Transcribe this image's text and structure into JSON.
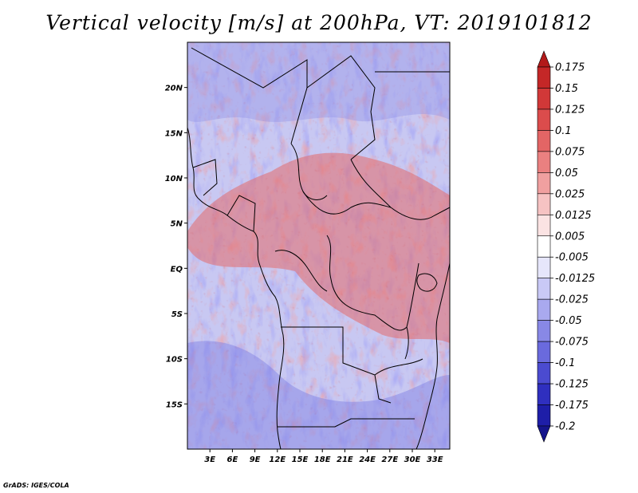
{
  "title": "Vertical velocity [m/s] at 200hPa, VT: 2019101812",
  "credit": "GrADS: IGES/COLA",
  "map": {
    "lon_range": [
      0,
      35
    ],
    "lat_range": [
      -20,
      25
    ],
    "lon_ticks": [
      "3E",
      "6E",
      "9E",
      "12E",
      "15E",
      "18E",
      "21E",
      "24E",
      "27E",
      "30E",
      "33E"
    ],
    "lat_ticks": [
      "20N",
      "15N",
      "10N",
      "5N",
      "EQ",
      "5S",
      "10S",
      "15S"
    ]
  },
  "colorbar": {
    "labels": [
      "0.175",
      "0.15",
      "0.125",
      "0.1",
      "0.075",
      "0.05",
      "0.025",
      "0.0125",
      "0.005",
      "-0.005",
      "-0.0125",
      "-0.025",
      "-0.05",
      "-0.075",
      "-0.1",
      "-0.125",
      "-0.175",
      "-0.2"
    ],
    "colors": [
      "#b21a1a",
      "#c42727",
      "#d13838",
      "#db4c4c",
      "#e36565",
      "#ea8080",
      "#f0a0a0",
      "#f6c3c3",
      "#fbe3e3",
      "#ffffff",
      "#e6e6fb",
      "#c9c9f6",
      "#a9a9ef",
      "#8888e6",
      "#6a6add",
      "#4b4bd0",
      "#2f2fbf",
      "#1e1ea8",
      "#15158c"
    ]
  }
}
